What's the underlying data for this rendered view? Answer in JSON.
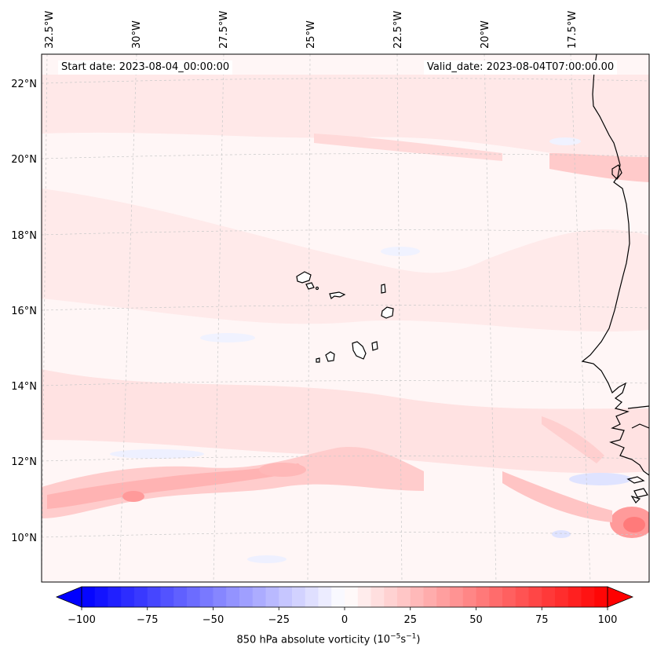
{
  "map": {
    "start_date": "Start date: 2023-08-04_00:00:00",
    "valid_date": "Valid_date: 2023-08-04T07:00:00.00",
    "variable": "850 hPa absolute vorticity",
    "units_prefix": "(10",
    "units_exp1": "−5",
    "units_mid": "s",
    "units_exp2": "−1",
    "units_suffix": ")",
    "longitude_labels": [
      "32.5°W",
      "30°W",
      "27.5°W",
      "25°W",
      "22.5°W",
      "20°W",
      "17.5°W"
    ],
    "latitude_labels": [
      "22°N",
      "20°N",
      "18°N",
      "16°N",
      "14°N",
      "12°N",
      "10°N"
    ],
    "colorbar_ticks": [
      "−100",
      "−75",
      "−50",
      "−25",
      "0",
      "25",
      "50",
      "75",
      "100"
    ],
    "colorbar_range": [
      -100,
      100
    ],
    "colorbar_step": 5,
    "colormap": "bwr",
    "extent": {
      "lon_min": -33.0,
      "lon_max": -16.3,
      "lat_min": 8.8,
      "lat_max": 22.8
    },
    "colors": {
      "coast": "#000000",
      "grid": "#c0c0c0",
      "neg": "#0000ff",
      "pos": "#ff0000",
      "background": "#fff5f5"
    }
  }
}
